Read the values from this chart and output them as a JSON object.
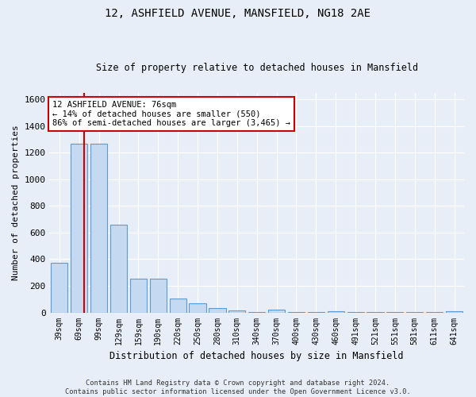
{
  "title1": "12, ASHFIELD AVENUE, MANSFIELD, NG18 2AE",
  "title2": "Size of property relative to detached houses in Mansfield",
  "xlabel": "Distribution of detached houses by size in Mansfield",
  "ylabel": "Number of detached properties",
  "categories": [
    "39sqm",
    "69sqm",
    "99sqm",
    "129sqm",
    "159sqm",
    "190sqm",
    "220sqm",
    "250sqm",
    "280sqm",
    "310sqm",
    "340sqm",
    "370sqm",
    "400sqm",
    "430sqm",
    "460sqm",
    "491sqm",
    "521sqm",
    "551sqm",
    "581sqm",
    "611sqm",
    "641sqm"
  ],
  "bar_values": [
    370,
    1270,
    1270,
    660,
    255,
    255,
    105,
    70,
    35,
    15,
    5,
    20,
    5,
    5,
    12,
    5,
    5,
    5,
    5,
    5,
    12
  ],
  "bar_color": "#c5d9f0",
  "bar_edge_color": "#5b9bd5",
  "property_line_color": "#cc0000",
  "annotation_text": "12 ASHFIELD AVENUE: 76sqm\n← 14% of detached houses are smaller (550)\n86% of semi-detached houses are larger (3,465) →",
  "annotation_box_color": "#ffffff",
  "annotation_box_edge": "#cc0000",
  "ylim": [
    0,
    1650
  ],
  "yticks": [
    0,
    200,
    400,
    600,
    800,
    1000,
    1200,
    1400,
    1600
  ],
  "footer": "Contains HM Land Registry data © Crown copyright and database right 2024.\nContains public sector information licensed under the Open Government Licence v3.0.",
  "bg_color": "#e8eef7",
  "grid_color": "#ffffff"
}
